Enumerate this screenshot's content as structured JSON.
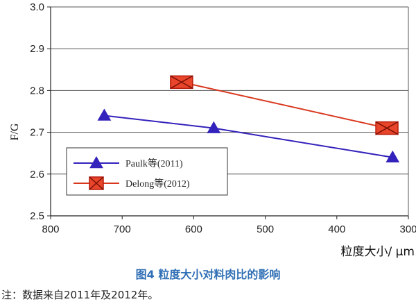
{
  "chart_data": {
    "type": "line",
    "ylabel": "F/G",
    "xlabel": "粒度大小/ μm",
    "xlim": [
      800,
      300
    ],
    "ylim": [
      2.5,
      3.0
    ],
    "x_ticks": [
      800,
      700,
      600,
      500,
      400,
      300
    ],
    "y_ticks": [
      2.5,
      2.6,
      2.7,
      2.8,
      2.9,
      3.0
    ],
    "grid": "horizontal",
    "legend_position": "bottom-left",
    "series": [
      {
        "name": "Paulk等(2011)",
        "color": "#3322bb",
        "marker": "triangle",
        "points": [
          {
            "x": 725,
            "y": 2.74
          },
          {
            "x": 572,
            "y": 2.71
          },
          {
            "x": 322,
            "y": 2.64
          }
        ]
      },
      {
        "name": "Delong等(2012)",
        "color": "#d9381e",
        "marker": "square-x",
        "points": [
          {
            "x": 617,
            "y": 2.82
          },
          {
            "x": 330,
            "y": 2.71
          }
        ]
      }
    ]
  },
  "caption": "图4  粒度大小对料肉比的影响",
  "note": "注：数据来自2011年及2012年。"
}
